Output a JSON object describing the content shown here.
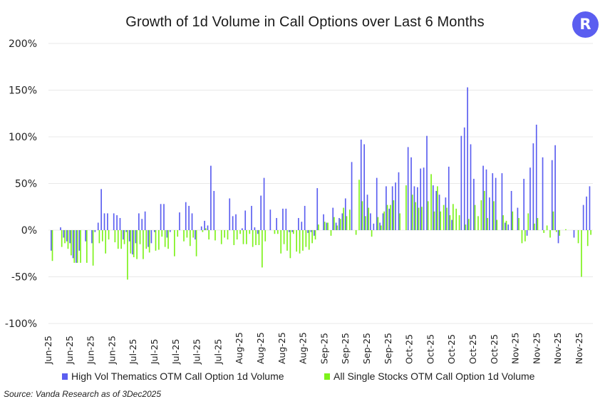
{
  "title": "Growth of 1d Volume in Call Options over Last 6 Months",
  "logo": {
    "letter": "R",
    "color": "#5b5ef0"
  },
  "source": "Source: Vanda Research as of 3Dec2025",
  "chart_data": {
    "type": "bar",
    "title": "Growth of 1d Volume in Call Options over Last 6 Months",
    "xlabel": "",
    "ylabel": "",
    "ylim": [
      -100,
      200
    ],
    "yticks": [
      200,
      150,
      100,
      50,
      0,
      -50,
      -100
    ],
    "ytick_labels": [
      "200%",
      "150%",
      "100%",
      "50%",
      "0%",
      "-50%",
      "-100%"
    ],
    "grid": true,
    "legend_position": "bottom",
    "xtick_labels": [
      "Jun-25",
      "Jun-25",
      "Jun-25",
      "Jun-25",
      "Jul-25",
      "Jul-25",
      "Jul-25",
      "Jul-25",
      "Jul-25",
      "Aug-25",
      "Aug-25",
      "Aug-25",
      "Aug-25",
      "Sep-25",
      "Sep-25",
      "Sep-25",
      "Sep-25",
      "Oct-25",
      "Oct-25",
      "Oct-25",
      "Oct-25",
      "Oct-25",
      "Nov-25",
      "Nov-25",
      "Nov-25",
      "Nov-25"
    ],
    "series": [
      {
        "name": "High Vol Thematics OTM Call Option 1d Volume",
        "color": "#5b5ef0",
        "values": [
          -22,
          0,
          0,
          3,
          -8,
          -12,
          -14,
          -30,
          -35,
          -22,
          0,
          -12,
          0,
          -14,
          -2,
          8,
          44,
          18,
          18,
          0,
          18,
          16,
          13,
          -10,
          -2,
          -12,
          -26,
          -14,
          18,
          12,
          20,
          -18,
          -14,
          -2,
          0,
          28,
          28,
          -8,
          -2,
          0,
          0,
          19,
          0,
          30,
          26,
          18,
          -10,
          0,
          4,
          10,
          5,
          69,
          42,
          0,
          0,
          0,
          0,
          34,
          15,
          17,
          0,
          2,
          21,
          0,
          26,
          3,
          -4,
          37,
          56,
          0,
          22,
          0,
          13,
          0,
          23,
          23,
          -2,
          -2,
          0,
          13,
          9,
          26,
          -3,
          -2,
          -6,
          45,
          0,
          17,
          8,
          0,
          24,
          8,
          13,
          18,
          34,
          0,
          73,
          0,
          0,
          97,
          92,
          38,
          18,
          7,
          56,
          8,
          18,
          47,
          23,
          47,
          51,
          62,
          0,
          0,
          89,
          78,
          47,
          46,
          66,
          67,
          101,
          0,
          48,
          42,
          38,
          0,
          35,
          68,
          11,
          0,
          0,
          101,
          110,
          153,
          92,
          55,
          0,
          0,
          69,
          65,
          35,
          61,
          56,
          0,
          61,
          8,
          6,
          42,
          0,
          24,
          0,
          55,
          -6,
          67,
          93,
          113,
          0,
          78,
          0,
          0,
          75,
          91,
          -14,
          0,
          0,
          0,
          0,
          -8,
          0,
          0,
          27,
          36,
          47
        ],
        "values_note": "approximate daily growth % read from bar heights"
      },
      {
        "name": "All Single Stocks OTM Call Option 1d Volume",
        "color": "#7df21a",
        "values": [
          -33,
          0,
          0,
          -18,
          -14,
          -20,
          -27,
          -35,
          -35,
          -35,
          0,
          -35,
          0,
          -38,
          0,
          -14,
          -12,
          -25,
          -10,
          0,
          -13,
          -20,
          -20,
          -15,
          -53,
          -25,
          -29,
          -31,
          -15,
          -31,
          -20,
          -24,
          0,
          -22,
          -21,
          -7,
          -18,
          -20,
          0,
          -28,
          -7,
          0,
          -12,
          -8,
          -17,
          -8,
          -28,
          0,
          -2,
          2,
          -10,
          0,
          -11,
          0,
          -15,
          -8,
          -10,
          0,
          -16,
          -10,
          -4,
          -15,
          -15,
          -4,
          -18,
          -16,
          -16,
          -40,
          -12,
          0,
          0,
          -4,
          -4,
          -25,
          -15,
          -22,
          -30,
          -4,
          -23,
          -25,
          -22,
          -18,
          -21,
          -14,
          -10,
          6,
          0,
          9,
          8,
          -6,
          14,
          5,
          12,
          24,
          15,
          22,
          0,
          -5,
          54,
          31,
          15,
          24,
          -7,
          0,
          14,
          5,
          20,
          27,
          27,
          32,
          0,
          18,
          0,
          48,
          0,
          38,
          30,
          24,
          25,
          0,
          31,
          60,
          20,
          47,
          20,
          27,
          24,
          16,
          28,
          23,
          16,
          0,
          6,
          12,
          0,
          27,
          15,
          32,
          42,
          13,
          0,
          31,
          11,
          0,
          16,
          10,
          0,
          20,
          0,
          13,
          -14,
          -12,
          18,
          0,
          7,
          13,
          0,
          -3,
          5,
          -8,
          20,
          -2,
          -6,
          0,
          1,
          0,
          0,
          0,
          -14,
          -50,
          0,
          -17,
          -5
        ],
        "values_note": "approximate daily growth % read from bar heights"
      }
    ]
  },
  "legend": [
    {
      "label": "High Vol Thematics OTM Call Option 1d Volume",
      "color": "#5b5ef0"
    },
    {
      "label": "All Single Stocks OTM Call Option 1d Volume",
      "color": "#7df21a"
    }
  ]
}
